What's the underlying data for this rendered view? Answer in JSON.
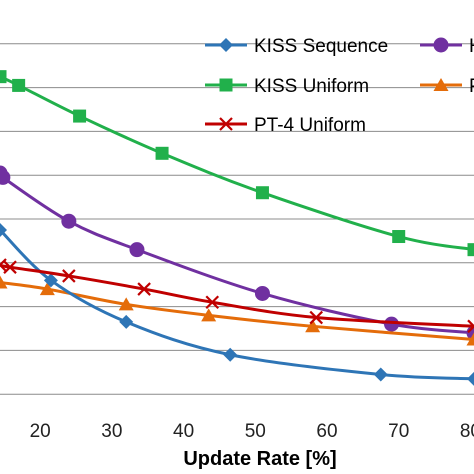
{
  "chart_data": {
    "type": "line",
    "xlabel": "Update Rate [%]",
    "ylabel": "",
    "xlim": [
      14.4,
      80.5
    ],
    "ylim": [
      0,
      10
    ],
    "y_grid": [
      1,
      2,
      3,
      4,
      5,
      6,
      7,
      8,
      9
    ],
    "x_ticks": [
      20,
      30,
      40,
      50,
      60,
      70,
      80
    ],
    "x_tick_labels": [
      "20",
      "30",
      "40",
      "50",
      "60",
      "70",
      "80"
    ],
    "grid": true,
    "legend": "top-right",
    "series": [
      {
        "name": "KISS Sequence",
        "color": "#2E75B6",
        "marker": "diamond",
        "x": [
          14.4,
          21.5,
          32,
          46.5,
          67.5,
          80.5
        ],
        "y": [
          4.75,
          3.6,
          2.65,
          1.9,
          1.45,
          1.35
        ]
      },
      {
        "name": "KISS Uniform",
        "color": "#21B04B",
        "marker": "square",
        "x": [
          14.4,
          17,
          25.5,
          37,
          51,
          70,
          80.5
        ],
        "y": [
          8.25,
          8.05,
          7.35,
          6.5,
          5.6,
          4.6,
          4.3
        ]
      },
      {
        "name": "H",
        "color": "#7030A0",
        "marker": "circle",
        "x": [
          14.4,
          14.8,
          24,
          33.5,
          51,
          69,
          80.5
        ],
        "y": [
          6.05,
          5.95,
          4.95,
          4.3,
          3.3,
          2.6,
          2.4
        ]
      },
      {
        "name": "PT-4 Uniform",
        "color": "#C00000",
        "marker": "x",
        "x": [
          14.4,
          15.8,
          24,
          34.5,
          44,
          58.5,
          80.5
        ],
        "y": [
          3.95,
          3.9,
          3.7,
          3.4,
          3.1,
          2.75,
          2.55
        ]
      },
      {
        "name": "P",
        "color": "#E46C0A",
        "marker": "triangle",
        "x": [
          14.4,
          21,
          32,
          43.5,
          58,
          80.5
        ],
        "y": [
          3.55,
          3.4,
          3.05,
          2.8,
          2.55,
          2.25
        ]
      }
    ]
  }
}
